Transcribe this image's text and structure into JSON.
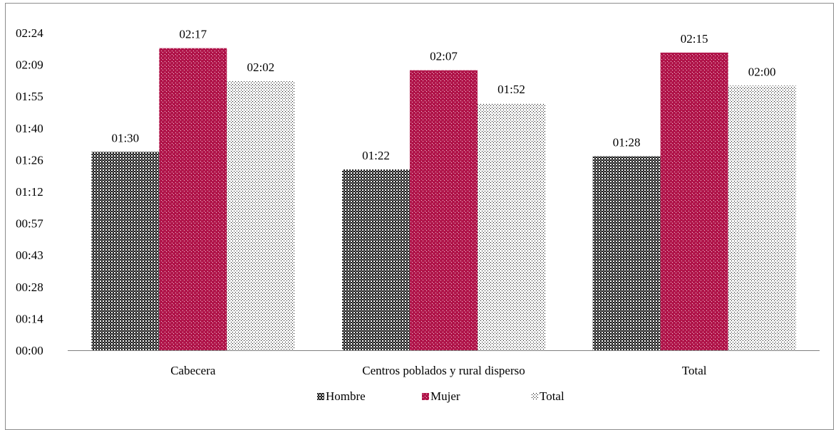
{
  "chart_data": {
    "type": "bar",
    "categories": [
      "Cabecera",
      "Centros poblados y rural disperso",
      "Total"
    ],
    "series": [
      {
        "name": "Hombre",
        "values": [
          "01:30",
          "01:22",
          "01:28"
        ],
        "minutes": [
          90,
          82,
          88
        ],
        "pattern": "checker",
        "color": "#1a1a1a"
      },
      {
        "name": "Mujer",
        "values": [
          "02:17",
          "02:07",
          "02:15"
        ],
        "minutes": [
          137,
          127,
          135
        ],
        "pattern": "dotted-crimson",
        "color": "#b0154a"
      },
      {
        "name": "Total",
        "values": [
          "02:02",
          "01:52",
          "02:00"
        ],
        "minutes": [
          122,
          112,
          120
        ],
        "pattern": "sparse-dots",
        "color": "#000000"
      }
    ],
    "y_ticks": [
      "00:00",
      "00:14",
      "00:28",
      "00:43",
      "00:57",
      "01:12",
      "01:26",
      "01:40",
      "01:55",
      "02:09",
      "02:24"
    ],
    "ylim_minutes": [
      0,
      144
    ],
    "legend_position": "bottom",
    "grid": false
  }
}
